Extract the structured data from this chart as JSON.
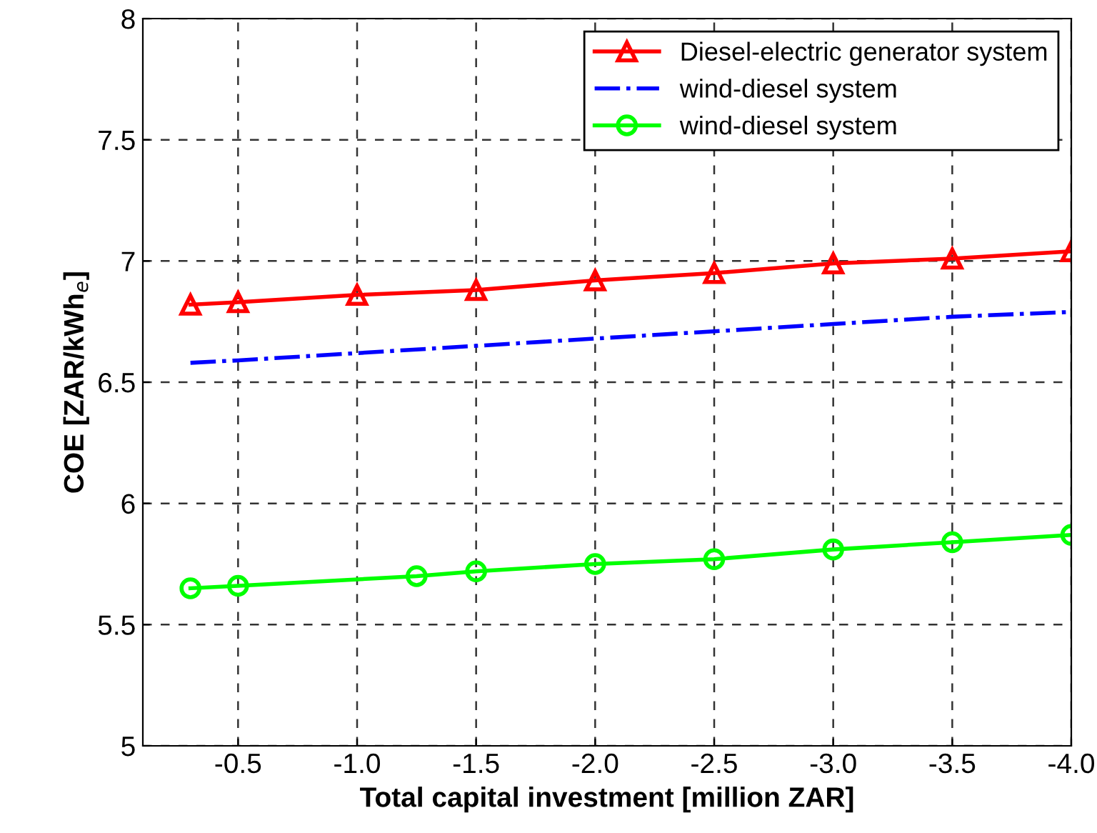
{
  "chart_data": {
    "type": "line",
    "xlabel": "Total capital investment [million ZAR]",
    "ylabel": "COE [ZAR/kWh$_{e}$]",
    "xlim": [
      -0.1,
      -4.0
    ],
    "xticks": [
      -0.5,
      {
        "value": -1,
        "label": "-1.0"
      },
      -1.5,
      {
        "value": -2,
        "label": "-2.0"
      },
      -2.5,
      {
        "value": -3,
        "label": "-3.0"
      },
      -3.5,
      {
        "value": -4,
        "label": "-4.0"
      }
    ],
    "ylim": [
      5,
      8
    ],
    "yticks": [
      5,
      5.5,
      6,
      6.5,
      7,
      7.5,
      8
    ],
    "grid": true,
    "legend": "top right",
    "series": [
      {
        "name": "Diesel-electric generator system",
        "color": "#ff0000",
        "marker": "triangle",
        "line_style": "solid",
        "x": [
          -0.3,
          -0.5,
          -1.0,
          -1.5,
          -2.0,
          -2.5,
          -3.0,
          -3.5,
          -4.0
        ],
        "values": [
          6.82,
          6.83,
          6.86,
          6.88,
          6.92,
          6.95,
          6.99,
          7.01,
          7.04
        ]
      },
      {
        "name": "wind-diesel system",
        "color": "#0000ff",
        "marker": "none",
        "line_style": "dashdot",
        "x": [
          -0.3,
          -0.5,
          -1.0,
          -1.5,
          -2.0,
          -2.5,
          -3.0,
          -3.5,
          -4.0
        ],
        "values": [
          6.58,
          6.59,
          6.62,
          6.65,
          6.68,
          6.71,
          6.74,
          6.77,
          6.79
        ]
      },
      {
        "name": "wind-diesel system",
        "color": "#00ff00",
        "marker": "circle",
        "line_style": "solid",
        "x": [
          -0.3,
          -0.5,
          -1.25,
          -1.5,
          -2.0,
          -2.5,
          -3.0,
          -3.5,
          -4.0
        ],
        "values": [
          5.65,
          5.66,
          5.7,
          5.72,
          5.75,
          5.77,
          5.81,
          5.84,
          5.87
        ]
      }
    ]
  }
}
